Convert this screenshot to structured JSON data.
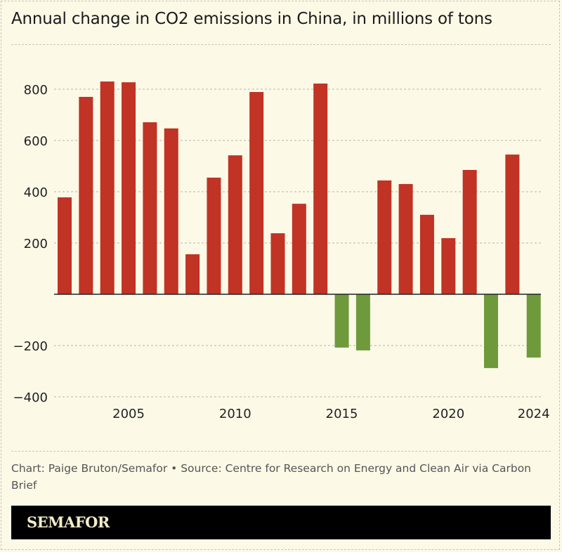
{
  "chart_data": {
    "type": "bar",
    "title": "Annual change in CO2 emissions in China, in millions of tons",
    "categories": [
      2002,
      2003,
      2004,
      2005,
      2006,
      2007,
      2008,
      2009,
      2010,
      2011,
      2012,
      2013,
      2014,
      2015,
      2016,
      2017,
      2018,
      2019,
      2020,
      2021,
      2022,
      2023,
      2024
    ],
    "values": [
      378,
      770,
      830,
      827,
      671,
      647,
      156,
      455,
      542,
      789,
      238,
      353,
      822,
      -208,
      -219,
      444,
      430,
      310,
      219,
      485,
      -288,
      545,
      -247
    ],
    "ylim": [
      -400,
      850
    ],
    "yticks": [
      -400,
      -200,
      200,
      400,
      600,
      800
    ],
    "ytick_labels": [
      "−400",
      "−200",
      "200",
      "400",
      "600",
      "800"
    ],
    "xticks": [
      "2005",
      "2010",
      "2015",
      "2020",
      "2024"
    ],
    "grid": true,
    "colors": {
      "positive": "#c03325",
      "negative": "#6e9a3c"
    },
    "xlabel": "",
    "ylabel": ""
  },
  "footer": {
    "source": "Chart: Paige Bruton/Semafor • Source: Centre for Research on Energy and Clean Air via Carbon Brief",
    "logo": "SEMAFOR"
  }
}
